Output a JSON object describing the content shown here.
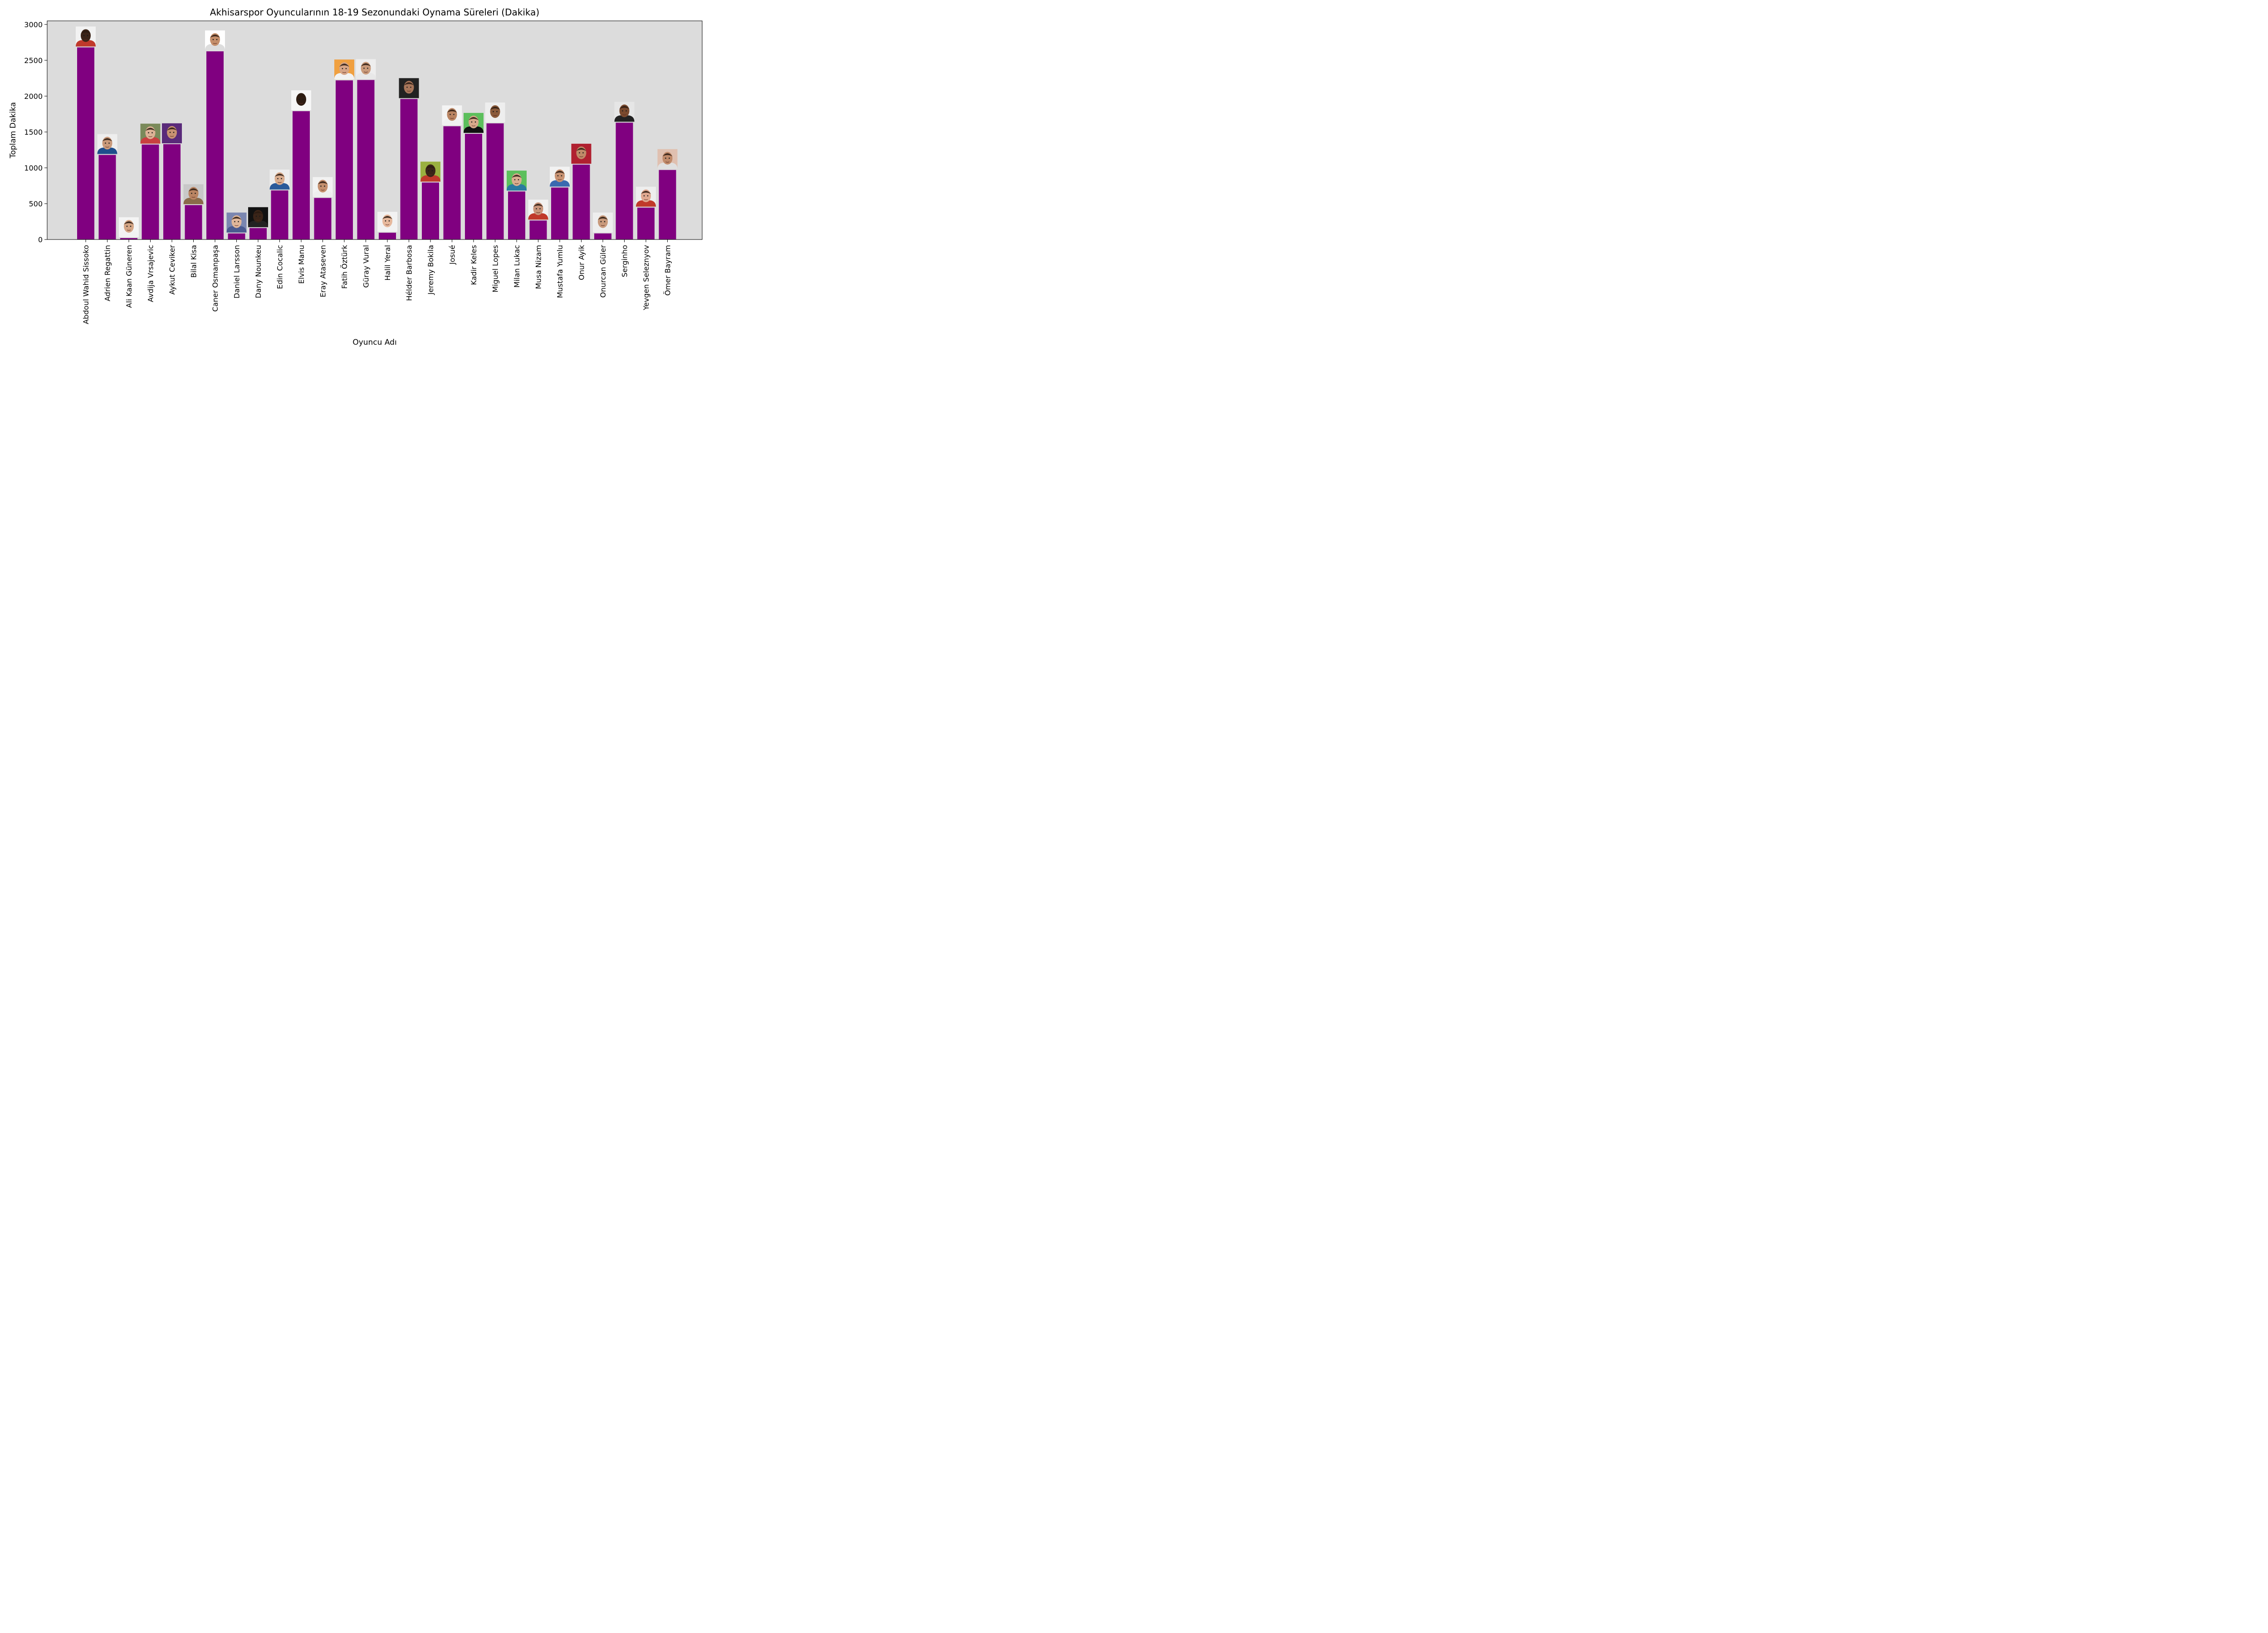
{
  "chart_data": {
    "type": "bar",
    "title": "Akhisarspor Oyuncularının 18-19 Sezonundaki Oynama Süreleri (Dakika)",
    "xlabel": "Oyuncu Adı",
    "ylabel": "Toplam Dakika",
    "ylim": [
      0,
      3050
    ],
    "yticks": [
      0,
      500,
      1000,
      1500,
      2000,
      2500,
      3000
    ],
    "grid": false,
    "legend": "none",
    "colors": {
      "bar": "#800080",
      "plot_background": "#dcdcdc",
      "axis": "#000000"
    },
    "categories": [
      "Abdoul Wahid Sissoko",
      "Adrien Regattin",
      "Ali Kaan Güneren",
      "Avdija Vrsajevic",
      "Aykut Ceviker",
      "Bilal Kisa",
      "Caner Osmanpaşa",
      "Daniel Larsson",
      "Dany Nounkeu",
      "Edin Cocalic",
      "Elvis Manu",
      "Eray Ataseven",
      "Fatih Öztürk",
      "Güray Vural",
      "Halil Yeral",
      "Hélder Barbosa",
      "Jeremy Bokila",
      "Josué",
      "Kadir Keles",
      "Miguel Lopes",
      "Milan Lukac",
      "Musa Nizam",
      "Mustafa Yumlu",
      "Onur Ayik",
      "Onurcan Güler",
      "Serginho",
      "Yevgen Seleznyov",
      "Ömer Bayram"
    ],
    "values": [
      2680,
      1180,
      20,
      1325,
      1330,
      480,
      2625,
      85,
      160,
      685,
      1790,
      580,
      2220,
      2225,
      95,
      1960,
      795,
      1580,
      1475,
      1620,
      670,
      265,
      725,
      1045,
      85,
      1630,
      445,
      970
    ],
    "player_photos": [
      {
        "skin": "#3b2418",
        "bg": "#f2f2f2",
        "shirt": "#c0392b"
      },
      {
        "skin": "#c9997a",
        "bg": "#eeeeee",
        "shirt": "#1f4e8c"
      },
      {
        "skin": "#d4a585",
        "bg": "#f4f4f4",
        "shirt": "#f2f2f2"
      },
      {
        "skin": "#dcb295",
        "bg": "#7a8a5a",
        "shirt": "#c94040"
      },
      {
        "skin": "#c89272",
        "bg": "#5a2a7a",
        "shirt": "#5a2a7a"
      },
      {
        "skin": "#b98462",
        "bg": "#c8c8c8",
        "shirt": "#8a6a4a"
      },
      {
        "skin": "#c48e6a",
        "bg": "#ffffff",
        "shirt": "#dddddd"
      },
      {
        "skin": "#e0b69a",
        "bg": "#7a86b0",
        "shirt": "#4a5a90"
      },
      {
        "skin": "#3a2418",
        "bg": "#111111",
        "shirt": "#222222"
      },
      {
        "skin": "#d9ad8f",
        "bg": "#ededed",
        "shirt": "#2a5a9a"
      },
      {
        "skin": "#2e1c12",
        "bg": "#f6f6f6",
        "shirt": "#f6f6f6"
      },
      {
        "skin": "#c4906e",
        "bg": "#f2f2f2",
        "shirt": "#eeeeee"
      },
      {
        "skin": "#d6a486",
        "bg": "#f0a040",
        "shirt": "#f2f2f2"
      },
      {
        "skin": "#c99a7a",
        "bg": "#eeeeee",
        "shirt": "#e8e8e8"
      },
      {
        "skin": "#e6b89c",
        "bg": "#f2f2f2",
        "shirt": "#f2f2f2"
      },
      {
        "skin": "#a8765a",
        "bg": "#222222",
        "shirt": "#222222"
      },
      {
        "skin": "#3a2418",
        "bg": "#9ab040",
        "shirt": "#c0392b"
      },
      {
        "skin": "#b98462",
        "bg": "#f4f4f4",
        "shirt": "#f0f0f0"
      },
      {
        "skin": "#d6a88a",
        "bg": "#5cbf5c",
        "shirt": "#111111"
      },
      {
        "skin": "#8a5a3a",
        "bg": "#eeeeee",
        "shirt": "#eeeeee"
      },
      {
        "skin": "#d9ad8f",
        "bg": "#5cbf5c",
        "shirt": "#2a7aa0"
      },
      {
        "skin": "#c8947a",
        "bg": "#f2f2f2",
        "shirt": "#c0392b"
      },
      {
        "skin": "#c89272",
        "bg": "#f2f2f2",
        "shirt": "#3a6ab0"
      },
      {
        "skin": "#c08a68",
        "bg": "#b02030",
        "shirt": "#b02030"
      },
      {
        "skin": "#c89a7c",
        "bg": "#eeeeee",
        "shirt": "#eeeeee"
      },
      {
        "skin": "#7a4a2e",
        "bg": "#e6e6e6",
        "shirt": "#222222"
      },
      {
        "skin": "#e0a890",
        "bg": "#eeeeee",
        "shirt": "#c0392b"
      },
      {
        "skin": "#c08a6a",
        "bg": "#e0c0b0",
        "shirt": "#e0e0e0"
      }
    ]
  }
}
